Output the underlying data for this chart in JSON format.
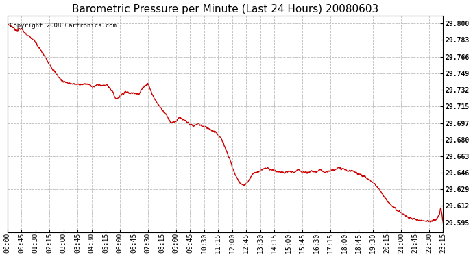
{
  "title": "Barometric Pressure per Minute (Last 24 Hours) 20080603",
  "copyright": "Copyright 2008 Cartronics.com",
  "line_color": "#cc0000",
  "background_color": "#ffffff",
  "grid_color": "#bbbbbb",
  "yticks": [
    29.595,
    29.612,
    29.629,
    29.646,
    29.663,
    29.68,
    29.697,
    29.715,
    29.732,
    29.749,
    29.766,
    29.783,
    29.8
  ],
  "ylim": [
    29.585,
    29.808
  ],
  "xtick_labels": [
    "00:00",
    "00:45",
    "01:30",
    "02:15",
    "03:00",
    "03:45",
    "04:30",
    "05:15",
    "06:00",
    "06:45",
    "07:30",
    "08:15",
    "09:00",
    "09:45",
    "10:30",
    "11:15",
    "12:00",
    "12:45",
    "13:30",
    "14:15",
    "15:00",
    "15:45",
    "16:30",
    "17:15",
    "18:00",
    "18:45",
    "19:30",
    "20:15",
    "21:00",
    "21:45",
    "22:30",
    "23:15"
  ],
  "title_fontsize": 11,
  "tick_fontsize": 7,
  "copyright_fontsize": 6.5,
  "figwidth": 6.9,
  "figheight": 3.75,
  "dpi": 100
}
